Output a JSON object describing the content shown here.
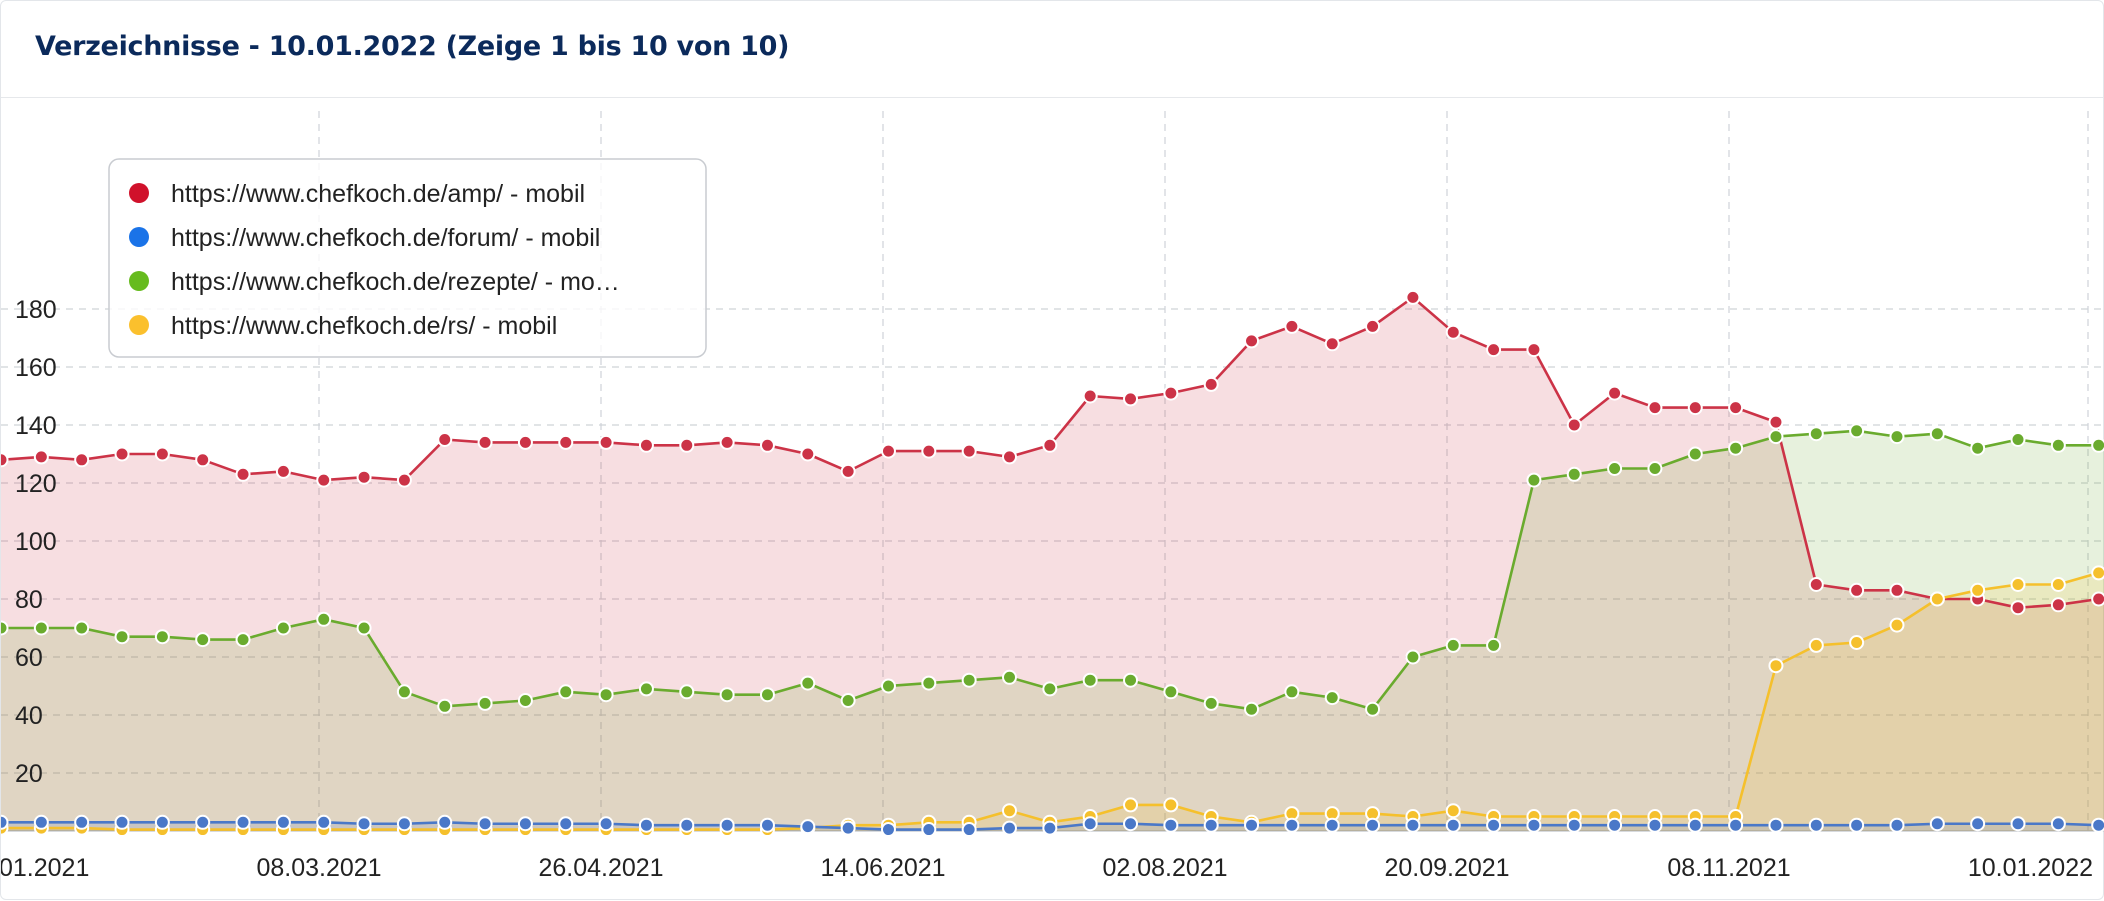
{
  "header": {
    "title": "Verzeichnisse - 10.01.2022 (Zeige 1 bis 10 von 10)"
  },
  "chart_data": {
    "type": "area",
    "ylim": [
      0,
      185
    ],
    "yticks": [
      20,
      40,
      60,
      80,
      100,
      120,
      140,
      160,
      180
    ],
    "grid": true,
    "legend_position": "top-left",
    "x_tick_labels": [
      "01.2021",
      "08.03.2021",
      "26.04.2021",
      "14.06.2021",
      "02.08.2021",
      "20.09.2021",
      "08.11.2021",
      "10.01.2022"
    ],
    "series": [
      {
        "name": "https://www.chefkoch.de/amp/ - mobil",
        "legend_label": "https://www.chefkoch.de/amp/ - mobil",
        "color": "#cc3347",
        "values": [
          128,
          129,
          128,
          130,
          130,
          128,
          123,
          124,
          121,
          122,
          121,
          135,
          134,
          134,
          134,
          134,
          133,
          133,
          134,
          133,
          130,
          124,
          131,
          131,
          131,
          129,
          133,
          150,
          149,
          151,
          154,
          169,
          174,
          168,
          174,
          184,
          172,
          166,
          166,
          140,
          151,
          146,
          146,
          146,
          141,
          85,
          83,
          83,
          80,
          80,
          77,
          78,
          80,
          79
        ]
      },
      {
        "name": "https://www.chefkoch.de/forum/ - mobil",
        "legend_label": "https://www.chefkoch.de/forum/ - mobil",
        "color": "#4a78c8",
        "values": [
          3,
          3,
          3,
          3,
          3,
          3,
          3,
          3,
          3,
          2.5,
          2.5,
          3,
          2.5,
          2.5,
          2.5,
          2.5,
          2,
          2,
          2,
          2,
          1.5,
          1,
          0.5,
          0.5,
          0.5,
          1,
          1,
          2.5,
          2.5,
          2,
          2,
          2,
          2,
          2,
          2,
          2,
          2,
          2,
          2,
          2,
          2,
          2,
          2,
          2,
          2,
          2,
          2,
          2,
          2.5,
          2.5,
          2.5,
          2.5,
          2,
          2
        ]
      },
      {
        "name": "https://www.chefkoch.de/rezepte/ - mobil",
        "legend_label": "https://www.chefkoch.de/rezepte/ - mo…",
        "color": "#6aab2e",
        "values": [
          70,
          70,
          70,
          67,
          67,
          66,
          66,
          70,
          73,
          70,
          48,
          43,
          44,
          45,
          48,
          47,
          49,
          48,
          47,
          47,
          51,
          45,
          50,
          51,
          52,
          53,
          49,
          52,
          52,
          48,
          44,
          42,
          48,
          46,
          42,
          60,
          64,
          64,
          121,
          123,
          125,
          125,
          130,
          132,
          136,
          137,
          138,
          136,
          137,
          132,
          135,
          133,
          133,
          133
        ]
      },
      {
        "name": "https://www.chefkoch.de/rs/ - mobil",
        "legend_label": "https://www.chefkoch.de/rs/ - mobil",
        "color": "#f5c02c",
        "values": [
          1,
          1,
          1,
          0.5,
          0.5,
          0.5,
          0.5,
          0.5,
          0.5,
          0.5,
          0.5,
          0.5,
          0.5,
          0.5,
          0.5,
          0.5,
          0.5,
          0.5,
          0.5,
          0.5,
          1,
          2,
          2,
          3,
          3,
          7,
          3,
          5,
          9,
          9,
          5,
          3,
          6,
          6,
          6,
          5,
          7,
          5,
          5,
          5,
          5,
          5,
          5,
          5,
          57,
          64,
          65,
          71,
          80,
          83,
          85,
          85,
          89,
          89
        ]
      }
    ]
  }
}
